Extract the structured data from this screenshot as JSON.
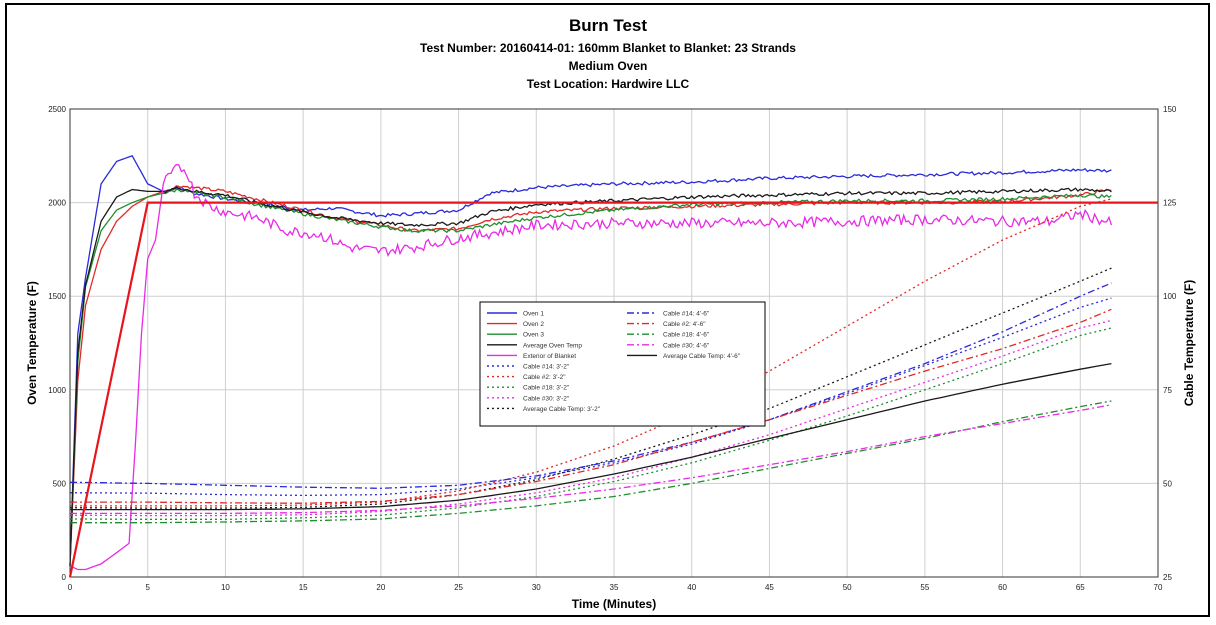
{
  "chart_data": {
    "type": "line",
    "title": "Burn Test",
    "subtitles": [
      "Test Number: 20160414-01: 160mm Blanket to Blanket: 23 Strands",
      "Medium Oven",
      "Test Location: Hardwire LLC"
    ],
    "xlabel": "Time (Minutes)",
    "ylabel": "Oven Temperature (F)",
    "y2label": "Cable Temperature (F)",
    "xlim": [
      0,
      70
    ],
    "ylim": [
      0,
      2500
    ],
    "y2lim": [
      25,
      150
    ],
    "xticks": [
      "0",
      "5",
      "10",
      "15",
      "20",
      "25",
      "30",
      "35",
      "40",
      "45",
      "50",
      "55",
      "60",
      "65",
      "70"
    ],
    "yticks": [
      "0",
      "500",
      "1000",
      "1500",
      "2000",
      "2500"
    ],
    "y2ticks": [
      "25",
      "50",
      "75",
      "100",
      "125",
      "150"
    ],
    "grid": true,
    "legend_position": "center",
    "series": [
      {
        "name": "Oven 1",
        "axis": "left",
        "color": "#2b2bd9",
        "dash": "solid",
        "x": [
          0,
          0.5,
          1,
          2,
          3,
          4,
          5,
          6,
          7,
          8,
          10,
          12,
          15,
          17,
          20,
          22,
          25,
          27,
          30,
          35,
          40,
          45,
          50,
          55,
          60,
          65,
          67
        ],
        "y": [
          60,
          1300,
          1600,
          2100,
          2220,
          2250,
          2100,
          2060,
          2080,
          2050,
          2020,
          2000,
          1960,
          1970,
          1930,
          1940,
          1960,
          2050,
          2080,
          2100,
          2110,
          2130,
          2140,
          2150,
          2160,
          2175,
          2170
        ]
      },
      {
        "name": "Oven 2",
        "axis": "left",
        "color": "#e02a2a",
        "dash": "solid",
        "x": [
          0,
          0.5,
          1,
          2,
          3,
          4,
          5,
          6,
          7,
          8,
          10,
          12,
          15,
          17,
          20,
          22,
          25,
          27,
          30,
          35,
          40,
          45,
          50,
          55,
          60,
          65,
          67
        ],
        "y": [
          60,
          1050,
          1450,
          1750,
          1900,
          1980,
          2030,
          2060,
          2090,
          2080,
          2060,
          2020,
          1960,
          1920,
          1880,
          1850,
          1860,
          1910,
          1950,
          1970,
          1980,
          1990,
          2000,
          2000,
          2005,
          2040,
          2070
        ]
      },
      {
        "name": "Oven 3",
        "axis": "left",
        "color": "#1f8f2e",
        "dash": "solid",
        "x": [
          0,
          0.5,
          1,
          2,
          3,
          4,
          5,
          6,
          7,
          8,
          10,
          12,
          15,
          17,
          20,
          22,
          25,
          27,
          30,
          35,
          40,
          45,
          50,
          55,
          60,
          65,
          67
        ],
        "y": [
          60,
          1150,
          1550,
          1850,
          1960,
          2000,
          2030,
          2050,
          2070,
          2050,
          2030,
          1990,
          1940,
          1910,
          1870,
          1850,
          1850,
          1880,
          1920,
          1960,
          1990,
          2000,
          2010,
          2010,
          2020,
          2040,
          2030
        ]
      },
      {
        "name": "Average Oven Temp",
        "axis": "left",
        "color": "#1a1a1a",
        "dash": "solid",
        "x": [
          0,
          0.5,
          1,
          2,
          3,
          4,
          5,
          6,
          7,
          8,
          10,
          12,
          15,
          17,
          20,
          22,
          25,
          27,
          30,
          35,
          40,
          45,
          50,
          55,
          60,
          65,
          67
        ],
        "y": [
          60,
          1200,
          1560,
          1900,
          2030,
          2070,
          2060,
          2060,
          2080,
          2060,
          2040,
          2000,
          1950,
          1920,
          1890,
          1880,
          1890,
          1950,
          1990,
          2010,
          2030,
          2040,
          2050,
          2050,
          2060,
          2070,
          2060
        ]
      },
      {
        "name": "Exterior of Blanket",
        "axis": "left",
        "color": "#e72be7",
        "dash": "solid",
        "x": [
          0,
          0.5,
          1,
          2,
          3,
          3.8,
          4.2,
          4.6,
          5,
          5.5,
          6,
          6.5,
          7,
          7.5,
          8,
          9,
          10,
          12,
          14,
          16,
          18,
          20,
          22,
          25,
          28,
          30,
          35,
          40,
          45,
          50,
          55,
          60,
          63,
          65,
          67
        ],
        "y": [
          60,
          40,
          40,
          70,
          130,
          180,
          700,
          1300,
          1700,
          1800,
          2100,
          2150,
          2190,
          2170,
          2050,
          1980,
          1950,
          1920,
          1850,
          1830,
          1760,
          1740,
          1760,
          1810,
          1850,
          1880,
          1890,
          1890,
          1890,
          1900,
          1910,
          1900,
          1900,
          1940,
          1890
        ]
      },
      {
        "name": "Cable #14: 3'-2\"",
        "axis": "right",
        "color": "#2b2bd9",
        "dash": "dot",
        "x": [
          0,
          5,
          10,
          15,
          20,
          25,
          30,
          35,
          40,
          45,
          50,
          55,
          60,
          65,
          67
        ],
        "y": [
          47.5,
          47.4,
          47.0,
          46.8,
          47.0,
          48.5,
          51.5,
          55.5,
          60.5,
          67,
          74,
          81.5,
          89,
          97,
          99.5
        ]
      },
      {
        "name": "Cable #2: 3'-2\"",
        "axis": "right",
        "color": "#e02a2a",
        "dash": "dot",
        "x": [
          0,
          5,
          10,
          15,
          20,
          25,
          30,
          35,
          40,
          45,
          50,
          55,
          60,
          65,
          67
        ],
        "y": [
          44,
          44,
          44,
          44.2,
          45,
          48,
          53,
          60,
          69,
          80,
          92,
          104,
          115,
          124,
          126
        ]
      },
      {
        "name": "Cable #18: 3'-2\"",
        "axis": "right",
        "color": "#1f8f2e",
        "dash": "dot",
        "x": [
          0,
          5,
          10,
          15,
          20,
          25,
          30,
          35,
          40,
          45,
          50,
          55,
          60,
          65,
          67
        ],
        "y": [
          40.5,
          40.4,
          40.4,
          40.8,
          41.5,
          43.5,
          46.5,
          50.5,
          55.5,
          61.5,
          68,
          75,
          82,
          89.5,
          91.5
        ]
      },
      {
        "name": "Cable #30: 3'-2\"",
        "axis": "right",
        "color": "#e72be7",
        "dash": "dot",
        "x": [
          0,
          5,
          10,
          15,
          20,
          25,
          30,
          35,
          40,
          45,
          50,
          55,
          60,
          65,
          67
        ],
        "y": [
          41.5,
          41.4,
          41.4,
          41.6,
          42.5,
          44.5,
          47.5,
          51.5,
          57,
          63,
          70,
          77,
          84,
          91.5,
          93.5
        ]
      },
      {
        "name": "Average Cable Temp: 3'-2\"",
        "axis": "right",
        "color": "#1a1a1a",
        "dash": "dot",
        "x": [
          0,
          5,
          10,
          15,
          20,
          25,
          30,
          35,
          40,
          45,
          50,
          55,
          60,
          65,
          67
        ],
        "y": [
          43.5,
          43.4,
          43.4,
          43.6,
          44.5,
          47,
          51,
          56.5,
          63,
          70,
          78.5,
          87,
          95.5,
          104,
          107.5
        ]
      },
      {
        "name": "Cable #14: 4'-6\"",
        "axis": "right",
        "color": "#2b2bd9",
        "dash": "dashdot",
        "x": [
          0,
          5,
          10,
          15,
          20,
          25,
          30,
          35,
          40,
          45,
          50,
          55,
          60,
          65,
          67
        ],
        "y": [
          50.3,
          50,
          49.5,
          49,
          48.7,
          49.5,
          52,
          56,
          61,
          67,
          74.5,
          82,
          90.5,
          100,
          103.5
        ]
      },
      {
        "name": "Cable #2: 4'-6\"",
        "axis": "right",
        "color": "#e02a2a",
        "dash": "dashdot",
        "x": [
          0,
          5,
          10,
          15,
          20,
          25,
          30,
          35,
          40,
          45,
          50,
          55,
          60,
          65,
          67
        ],
        "y": [
          45,
          45,
          44.8,
          44.7,
          45.2,
          47,
          50.5,
          55,
          61,
          67,
          73.5,
          80,
          86,
          93,
          96.5
        ]
      },
      {
        "name": "Cable #18: 4'-6\"",
        "axis": "right",
        "color": "#1f8f2e",
        "dash": "dashdot",
        "x": [
          0,
          5,
          10,
          15,
          20,
          25,
          30,
          35,
          40,
          45,
          50,
          55,
          60,
          65,
          67
        ],
        "y": [
          39.5,
          39.5,
          39.7,
          40,
          40.5,
          42,
          44,
          46.5,
          50,
          54,
          58,
          62,
          66.5,
          70.5,
          72
        ]
      },
      {
        "name": "Cable #30: 4'-6\"",
        "axis": "right",
        "color": "#e72be7",
        "dash": "dashdot",
        "x": [
          0,
          5,
          10,
          15,
          20,
          25,
          30,
          35,
          40,
          45,
          50,
          55,
          60,
          65,
          67
        ],
        "y": [
          42,
          42,
          42,
          42.2,
          42.8,
          44,
          46,
          48.5,
          51.5,
          55,
          58.5,
          62.5,
          66,
          69.5,
          71
        ]
      },
      {
        "name": "Average Cable Temp: 4'-6\"",
        "axis": "right",
        "color": "#1a1a1a",
        "dash": "solid",
        "x": [
          0,
          5,
          10,
          15,
          20,
          25,
          30,
          35,
          40,
          45,
          50,
          55,
          60,
          65,
          67
        ],
        "y": [
          43,
          43,
          43,
          43.2,
          43.8,
          45.5,
          48.5,
          52.5,
          57,
          62,
          67,
          72,
          76.5,
          80.5,
          82
        ]
      }
    ],
    "annotation": {
      "color": "#e8141e",
      "line": {
        "x": [
          0,
          5,
          70
        ],
        "y": [
          0,
          2000,
          2000
        ]
      }
    },
    "legend_entries": [
      "Oven 1",
      "Cable #14: 4'-6\"",
      "Oven 2",
      "Cable #2: 4'-6\"",
      "Oven 3",
      "Cable #18: 4'-6\"",
      "Average Oven Temp",
      "Cable #30: 4'-6\"",
      "Exterior of Blanket",
      "Average Cable Temp: 4'-6\"",
      "Cable #14: 3'-2\"",
      "",
      "Cable #2: 3'-2\"",
      "",
      "Cable #18: 3'-2\"",
      "",
      "Cable #30: 3'-2\"",
      "",
      "Average Cable Temp: 3'-2\"",
      ""
    ]
  }
}
